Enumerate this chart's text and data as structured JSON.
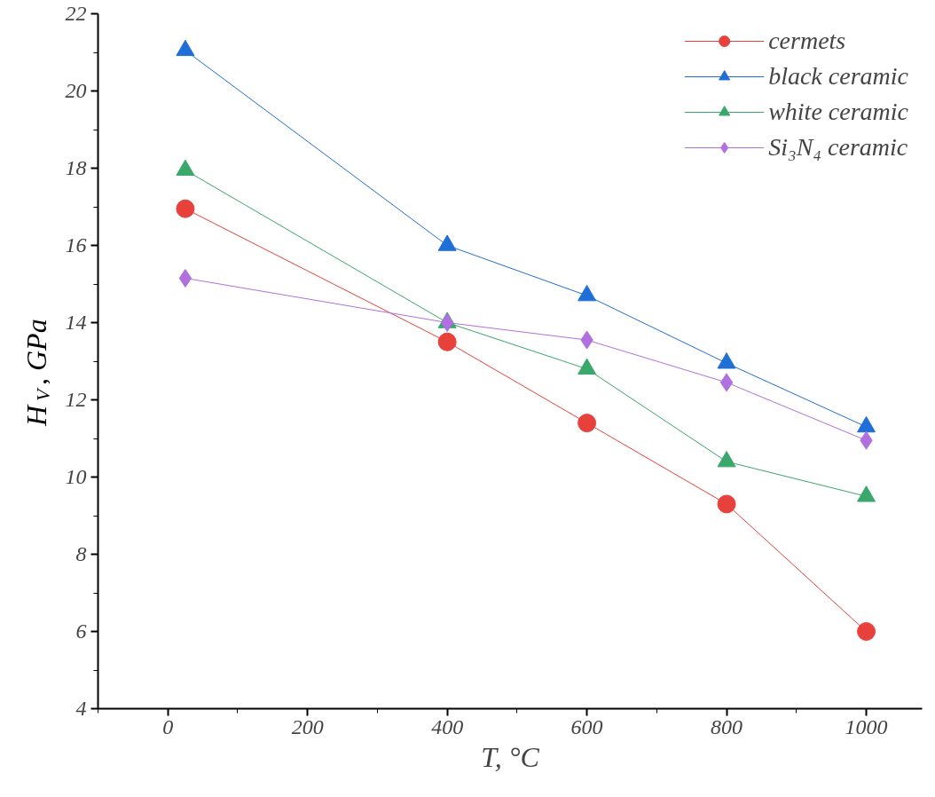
{
  "chart_data": {
    "type": "line",
    "xlabel": "T, °C",
    "ylabel": "H$_{V}$, GPa",
    "x": [
      25,
      400,
      600,
      800,
      1000
    ],
    "xlim": [
      -100,
      1080
    ],
    "ylim": [
      4,
      22
    ],
    "xticks": [
      {
        "value": -100,
        "label": null
      },
      0,
      {
        "value": 100,
        "label": null
      },
      200,
      {
        "value": 300,
        "label": null
      },
      400,
      {
        "value": 500,
        "label": null
      },
      600,
      {
        "value": 700,
        "label": null
      },
      800,
      {
        "value": 900,
        "label": null
      },
      1000
    ],
    "yticks": [
      4,
      {
        "value": 5,
        "label": null
      },
      6,
      {
        "value": 7,
        "label": null
      },
      8,
      {
        "value": 9,
        "label": null
      },
      10,
      {
        "value": 11,
        "label": null
      },
      12,
      {
        "value": 13,
        "label": null
      },
      14,
      {
        "value": 15,
        "label": null
      },
      16,
      {
        "value": 17,
        "label": null
      },
      18,
      {
        "value": 19,
        "label": null
      },
      20,
      {
        "value": 21,
        "label": null
      },
      22
    ],
    "grid": false,
    "legend": "top right",
    "line_style": "solid",
    "series": [
      {
        "name": "cermets",
        "color": "#e8413c",
        "marker": "circle",
        "values": [
          16.95,
          13.5,
          11.4,
          9.3,
          6.0
        ]
      },
      {
        "name": "black ceramic",
        "color": "#1f6fd8",
        "marker": "triangle",
        "values": [
          21.05,
          16.0,
          14.7,
          12.95,
          11.3
        ]
      },
      {
        "name": "white ceramic",
        "color": "#3aa86b",
        "marker": "triangle",
        "values": [
          17.95,
          14.0,
          12.8,
          10.4,
          9.5
        ]
      },
      {
        "name": "Si₃N₄ ceramic",
        "color": "#b070e0",
        "marker": "diamond",
        "values": [
          15.15,
          14.0,
          13.55,
          12.45,
          10.95
        ]
      }
    ]
  }
}
